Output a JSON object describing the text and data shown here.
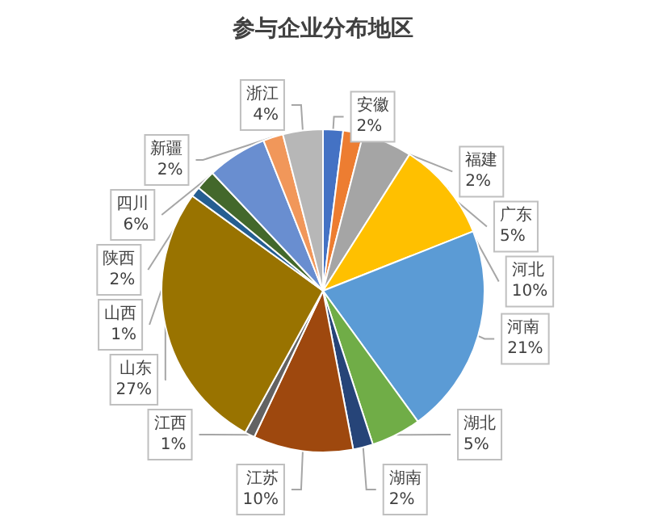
{
  "chart_data": {
    "type": "pie",
    "title": "参与企业分布地区",
    "categories": [
      "安徽",
      "福建",
      "广东",
      "河北",
      "河南",
      "湖北",
      "湖南",
      "江苏",
      "江西",
      "山东",
      "山西",
      "陕西",
      "四川",
      "新疆",
      "浙江"
    ],
    "values": [
      2,
      2,
      5,
      10,
      21,
      5,
      2,
      10,
      1,
      27,
      1,
      2,
      6,
      2,
      4
    ],
    "value_labels": [
      "2%",
      "2%",
      "5%",
      "10%",
      "21%",
      "5%",
      "2%",
      "10%",
      "1%",
      "27%",
      "1%",
      "2%",
      "6%",
      "2%",
      "4%"
    ],
    "colors": [
      "#4472c4",
      "#ed7d31",
      "#a5a5a5",
      "#ffc000",
      "#5b9bd5",
      "#70ad47",
      "#264478",
      "#9e480e",
      "#636363",
      "#997300",
      "#255e91",
      "#43682b",
      "#698ed0",
      "#f1975a",
      "#b7b7b7"
    ],
    "legend": false
  }
}
